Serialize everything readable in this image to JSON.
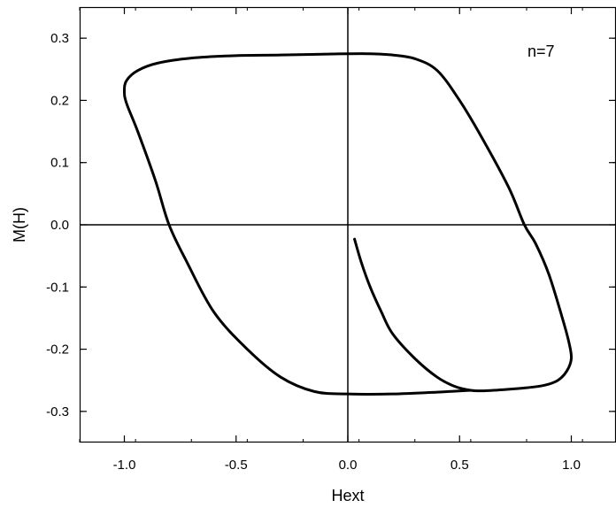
{
  "chart_data": {
    "type": "line",
    "title": "",
    "xlabel": "Hext",
    "ylabel": "M(H)",
    "xlim": [
      -1.2,
      1.2
    ],
    "ylim": [
      -0.35,
      0.35
    ],
    "x_ticks": [
      -1.0,
      -0.5,
      0.0,
      0.5,
      1.0
    ],
    "x_tick_labels": [
      "-1.0",
      "-0.5",
      "0.0",
      "0.5",
      "1.0"
    ],
    "y_ticks": [
      0.3,
      0.2,
      0.1,
      0.0,
      -0.1,
      -0.2,
      -0.3
    ],
    "y_tick_labels": [
      "0.3",
      "0.2",
      "0.1",
      "0.0",
      "-0.1",
      "-0.2",
      "-0.3"
    ],
    "grid": false,
    "zero_lines": true,
    "annotation": "n=7",
    "line_color": "#000000",
    "series": [
      {
        "points": [
          [
            0.03,
            -0.023
          ],
          [
            0.06,
            -0.06
          ],
          [
            0.1,
            -0.1
          ],
          [
            0.15,
            -0.14
          ],
          [
            0.2,
            -0.175
          ],
          [
            0.3,
            -0.215
          ],
          [
            0.4,
            -0.245
          ],
          [
            0.48,
            -0.26
          ],
          [
            0.55,
            -0.266
          ],
          [
            0.6,
            -0.267
          ],
          [
            0.7,
            -0.265
          ],
          [
            0.8,
            -0.262
          ],
          [
            0.88,
            -0.258
          ],
          [
            0.94,
            -0.25
          ],
          [
            0.98,
            -0.235
          ],
          [
            1.0,
            -0.215
          ],
          [
            0.99,
            -0.19
          ],
          [
            0.96,
            -0.15
          ],
          [
            0.9,
            -0.08
          ],
          [
            0.84,
            -0.03
          ],
          [
            0.79,
            0.0
          ],
          [
            0.72,
            0.06
          ],
          [
            0.6,
            0.14
          ],
          [
            0.5,
            0.2
          ],
          [
            0.4,
            0.248
          ],
          [
            0.3,
            0.267
          ],
          [
            0.2,
            0.273
          ],
          [
            0.1,
            0.275
          ],
          [
            0.0,
            0.275
          ],
          [
            -0.3,
            0.273
          ],
          [
            -0.5,
            0.272
          ],
          [
            -0.7,
            0.268
          ],
          [
            -0.85,
            0.26
          ],
          [
            -0.94,
            0.248
          ],
          [
            -0.99,
            0.232
          ],
          [
            -1.0,
            0.215
          ],
          [
            -0.99,
            0.195
          ],
          [
            -0.94,
            0.15
          ],
          [
            -0.86,
            0.07
          ],
          [
            -0.8,
            0.0
          ],
          [
            -0.72,
            -0.06
          ],
          [
            -0.6,
            -0.14
          ],
          [
            -0.45,
            -0.2
          ],
          [
            -0.3,
            -0.245
          ],
          [
            -0.15,
            -0.268
          ],
          [
            0.0,
            -0.272
          ],
          [
            0.2,
            -0.272
          ],
          [
            0.4,
            -0.269
          ],
          [
            0.55,
            -0.266
          ]
        ]
      }
    ]
  }
}
